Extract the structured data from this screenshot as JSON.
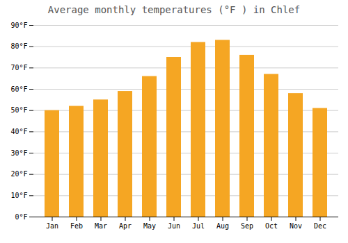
{
  "chart_data": {
    "type": "bar",
    "title": "Average monthly temperatures (°F ) in Chlef",
    "categories": [
      "Jan",
      "Feb",
      "Mar",
      "Apr",
      "May",
      "Jun",
      "Jul",
      "Aug",
      "Sep",
      "Oct",
      "Nov",
      "Dec"
    ],
    "values": [
      50,
      52,
      55,
      59,
      66,
      75,
      82,
      83,
      76,
      67,
      58,
      51
    ],
    "color": "#F5A623",
    "ylim": [
      0,
      90
    ],
    "yticks": [
      {
        "value": 0,
        "label": "0°F"
      },
      {
        "value": 10,
        "label": "10°F"
      },
      {
        "value": 20,
        "label": "20°F"
      },
      {
        "value": 30,
        "label": "30°F"
      },
      {
        "value": 40,
        "label": "40°F"
      },
      {
        "value": 50,
        "label": "50°F"
      },
      {
        "value": 60,
        "label": "60°F"
      },
      {
        "value": 70,
        "label": "70°F"
      },
      {
        "value": 80,
        "label": "80°F"
      },
      {
        "value": 90,
        "label": "90°F"
      }
    ],
    "grid": true
  }
}
